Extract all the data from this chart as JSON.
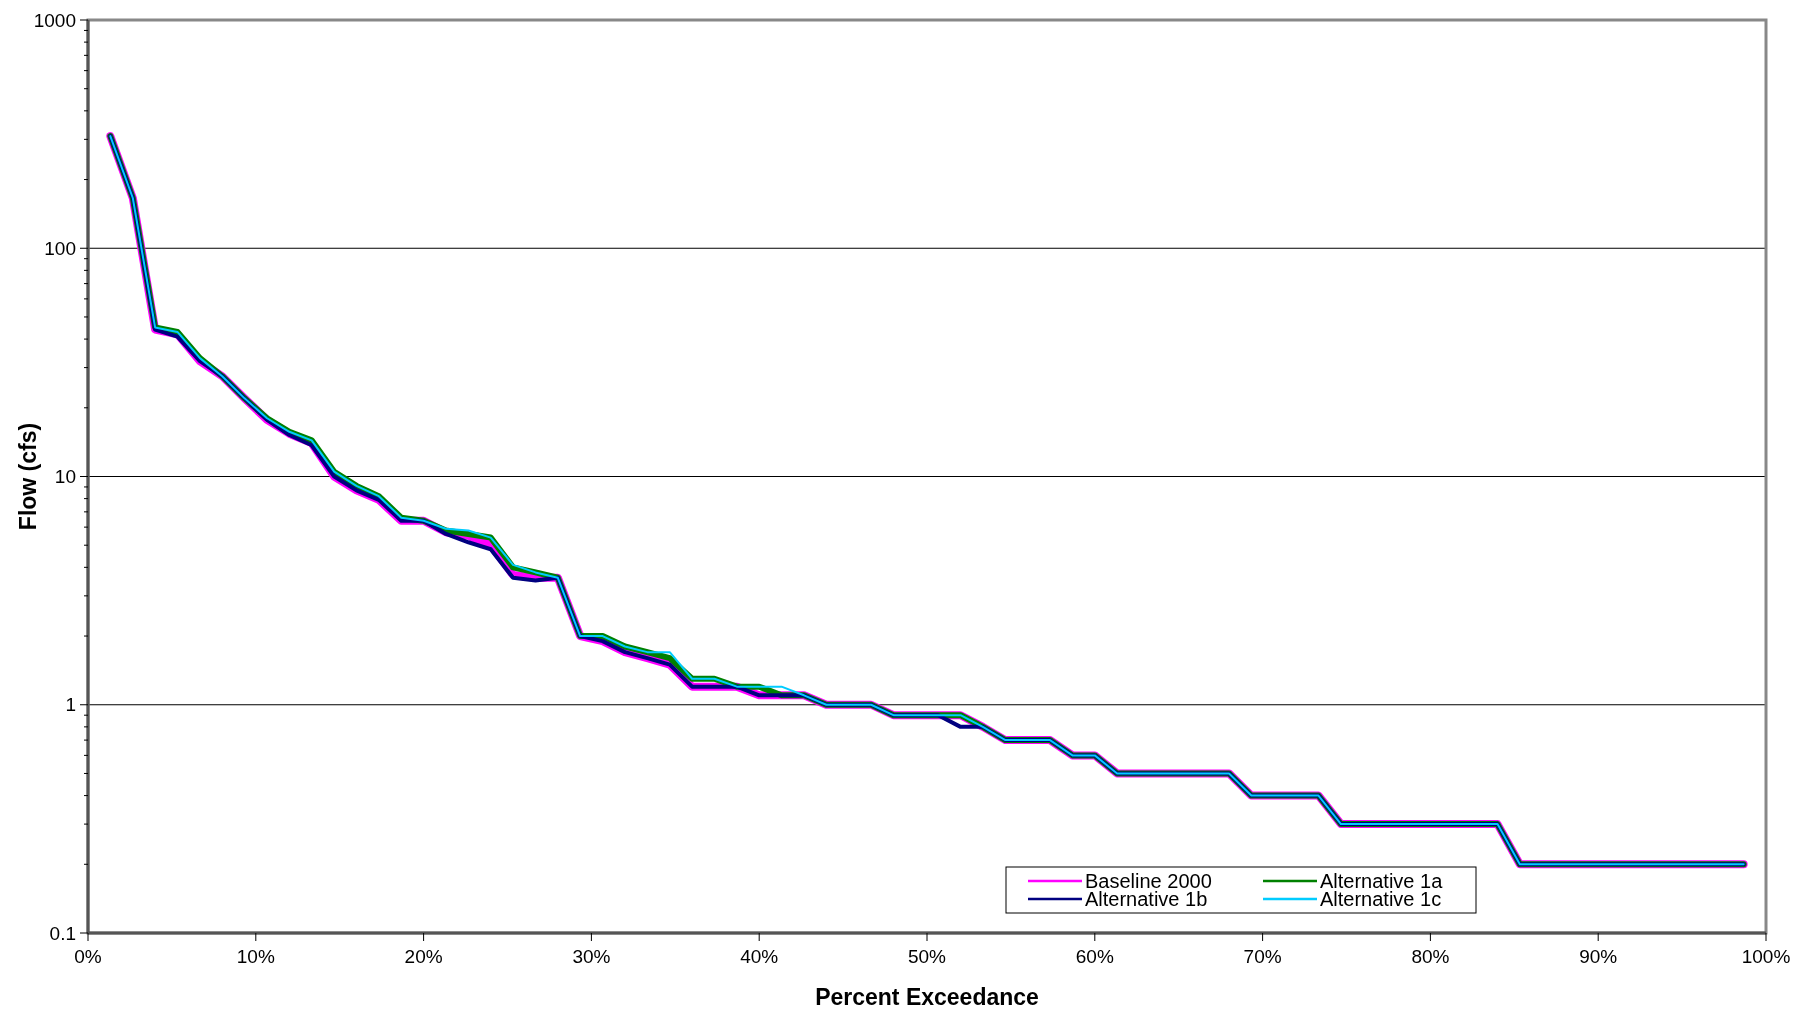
{
  "chart_data": {
    "type": "line",
    "xlabel": "Percent Exceedance",
    "ylabel": "Flow (cfs)",
    "x": [
      1.33,
      2.67,
      4,
      5.33,
      6.67,
      8,
      9.33,
      10.67,
      12,
      13.33,
      14.67,
      16,
      17.33,
      18.67,
      20,
      21.33,
      22.67,
      24,
      25.33,
      26.67,
      28,
      29.33,
      30.67,
      32,
      33.33,
      34.67,
      36,
      37.33,
      38.67,
      40,
      41.33,
      42.67,
      44,
      45.33,
      46.67,
      48,
      49.33,
      50.67,
      52,
      53.33,
      54.67,
      56,
      57.33,
      58.67,
      60,
      61.33,
      62.67,
      64,
      65.33,
      66.67,
      68,
      69.33,
      70.67,
      72,
      73.33,
      74.67,
      76,
      77.33,
      78.67,
      80,
      81.33,
      82.67,
      84,
      85.33,
      86.67,
      88,
      89.33,
      90.67,
      92,
      93.33,
      94.67,
      96,
      97.33,
      98.67
    ],
    "series": [
      {
        "name": "Baseline 2000",
        "color": "#ff00ff",
        "values": [
          310,
          166,
          44,
          42,
          32,
          27.5,
          22,
          17.7,
          15.4,
          14,
          10,
          8.7,
          7.9,
          6.4,
          6.4,
          5.7,
          5.5,
          5,
          3.7,
          3.6,
          3.6,
          2,
          1.9,
          1.7,
          1.6,
          1.5,
          1.2,
          1.2,
          1.2,
          1.1,
          1.1,
          1.1,
          1,
          1,
          1,
          0.9,
          0.9,
          0.9,
          0.9,
          0.8,
          0.7,
          0.7,
          0.7,
          0.6,
          0.6,
          0.5,
          0.5,
          0.5,
          0.5,
          0.5,
          0.5,
          0.4,
          0.4,
          0.4,
          0.4,
          0.3,
          0.3,
          0.3,
          0.3,
          0.3,
          0.3,
          0.3,
          0.3,
          0.2,
          0.2,
          0.2,
          0.2,
          0.2,
          0.2,
          0.2,
          0.2,
          0.2,
          0.2,
          0.2
        ]
      },
      {
        "name": "Alternative 1a",
        "color": "#008000",
        "values": [
          310,
          166,
          45,
          43,
          33,
          27.5,
          22,
          18,
          15.7,
          14.4,
          10.5,
          9.1,
          8.2,
          6.6,
          6.4,
          5.8,
          5.6,
          5.4,
          4,
          3.8,
          3.6,
          2,
          2,
          1.8,
          1.7,
          1.6,
          1.3,
          1.3,
          1.2,
          1.2,
          1.1,
          1.1,
          1,
          1,
          1,
          0.9,
          0.9,
          0.9,
          0.9,
          0.8,
          0.7,
          0.7,
          0.7,
          0.6,
          0.6,
          0.5,
          0.5,
          0.5,
          0.5,
          0.5,
          0.5,
          0.4,
          0.4,
          0.4,
          0.4,
          0.3,
          0.3,
          0.3,
          0.3,
          0.3,
          0.3,
          0.3,
          0.3,
          0.2,
          0.2,
          0.2,
          0.2,
          0.2,
          0.2,
          0.2,
          0.2,
          0.2,
          0.2,
          0.2
        ]
      },
      {
        "name": "Alternative 1b",
        "color": "#000080",
        "values": [
          310,
          166,
          44,
          41,
          32,
          27.5,
          22,
          17.7,
          15.2,
          13.7,
          10,
          8.7,
          7.9,
          6.4,
          6.4,
          5.6,
          5.15,
          4.8,
          3.6,
          3.5,
          3.6,
          2,
          1.9,
          1.7,
          1.6,
          1.5,
          1.2,
          1.2,
          1.2,
          1.1,
          1.1,
          1.1,
          1,
          1,
          1,
          0.9,
          0.9,
          0.9,
          0.8,
          0.8,
          0.7,
          0.7,
          0.7,
          0.6,
          0.6,
          0.5,
          0.5,
          0.5,
          0.5,
          0.5,
          0.5,
          0.4,
          0.4,
          0.4,
          0.4,
          0.3,
          0.3,
          0.3,
          0.3,
          0.3,
          0.3,
          0.3,
          0.3,
          0.2,
          0.2,
          0.2,
          0.2,
          0.2,
          0.2,
          0.2,
          0.2,
          0.2,
          0.2,
          0.2
        ]
      },
      {
        "name": "Alternative 1c",
        "color": "#00ccff",
        "values": [
          310,
          166,
          45,
          43,
          33,
          27.5,
          22,
          18,
          15.7,
          14.4,
          10.5,
          9.1,
          8.2,
          6.6,
          6.4,
          5.9,
          5.8,
          5.4,
          4.1,
          3.8,
          3.6,
          2,
          2,
          1.8,
          1.7,
          1.7,
          1.3,
          1.3,
          1.2,
          1.2,
          1.2,
          1.1,
          1,
          1,
          1,
          0.9,
          0.9,
          0.9,
          0.9,
          0.8,
          0.7,
          0.7,
          0.7,
          0.6,
          0.6,
          0.5,
          0.5,
          0.5,
          0.5,
          0.5,
          0.5,
          0.4,
          0.4,
          0.4,
          0.4,
          0.3,
          0.3,
          0.3,
          0.3,
          0.3,
          0.3,
          0.3,
          0.3,
          0.2,
          0.2,
          0.2,
          0.2,
          0.2,
          0.2,
          0.2,
          0.2,
          0.2,
          0.2,
          0.2
        ]
      }
    ],
    "xlim": [
      0,
      100
    ],
    "xticks": [
      {
        "value": 0,
        "label": "0%"
      },
      {
        "value": 10,
        "label": "10%"
      },
      {
        "value": 20,
        "label": "20%"
      },
      {
        "value": 30,
        "label": "30%"
      },
      {
        "value": 40,
        "label": "40%"
      },
      {
        "value": 50,
        "label": "50%"
      },
      {
        "value": 60,
        "label": "60%"
      },
      {
        "value": 70,
        "label": "70%"
      },
      {
        "value": 80,
        "label": "80%"
      },
      {
        "value": 90,
        "label": "90%"
      },
      {
        "value": 100,
        "label": "100%"
      }
    ],
    "ylim": [
      0.1,
      1000
    ],
    "yticks": [
      0.1,
      1,
      10,
      100,
      1000
    ],
    "log": "y",
    "grid": "y",
    "legend": "bottom right",
    "marker": "none",
    "line_style": "solid"
  }
}
